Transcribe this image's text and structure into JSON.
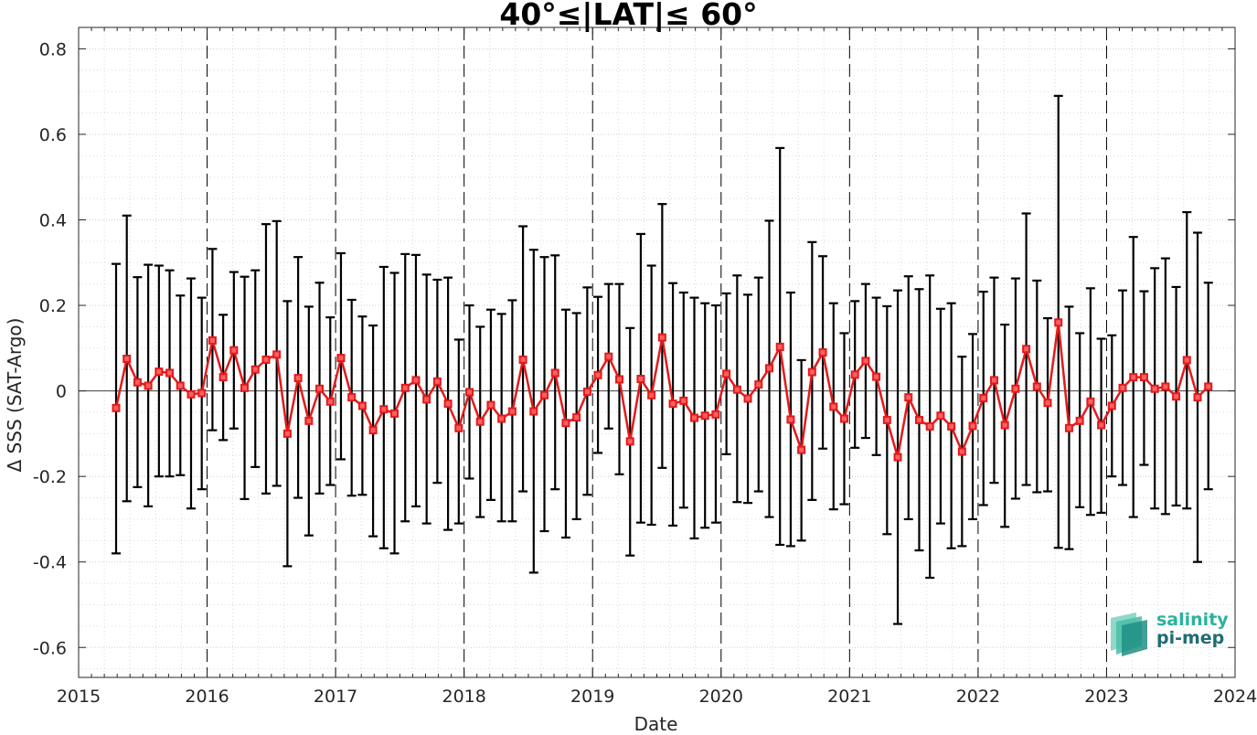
{
  "chart_data": {
    "type": "line",
    "title": "40°≤|LAT|≤ 60°",
    "xlabel": "Date",
    "ylabel": "Δ SSS (SAT-Argo)",
    "xlim": [
      2015,
      2024
    ],
    "ylim": [
      -0.67,
      0.85
    ],
    "xticks": [
      "2015",
      "2016",
      "2017",
      "2018",
      "2019",
      "2020",
      "2021",
      "2022",
      "2023",
      "2024"
    ],
    "yticks": [
      "-0.6",
      "-0.4",
      "-0.2",
      "0",
      "0.2",
      "0.4",
      "0.6",
      "0.8"
    ],
    "grid": true,
    "series": [
      {
        "color": "#e31a1c",
        "marker": "square",
        "error_bars": true,
        "x": [
          "2015-04",
          "2015-05",
          "2015-06",
          "2015-07",
          "2015-08",
          "2015-09",
          "2015-10",
          "2015-11",
          "2015-12",
          "2016-01",
          "2016-02",
          "2016-03",
          "2016-04",
          "2016-05",
          "2016-06",
          "2016-07",
          "2016-08",
          "2016-09",
          "2016-10",
          "2016-11",
          "2016-12",
          "2017-01",
          "2017-02",
          "2017-03",
          "2017-04",
          "2017-05",
          "2017-06",
          "2017-07",
          "2017-08",
          "2017-09",
          "2017-10",
          "2017-11",
          "2017-12",
          "2018-01",
          "2018-02",
          "2018-03",
          "2018-04",
          "2018-05",
          "2018-06",
          "2018-07",
          "2018-08",
          "2018-09",
          "2018-10",
          "2018-11",
          "2018-12",
          "2019-01",
          "2019-02",
          "2019-03",
          "2019-04",
          "2019-05",
          "2019-06",
          "2019-07",
          "2019-08",
          "2019-09",
          "2019-10",
          "2019-11",
          "2019-12",
          "2020-01",
          "2020-02",
          "2020-03",
          "2020-04",
          "2020-05",
          "2020-06",
          "2020-07",
          "2020-08",
          "2020-09",
          "2020-10",
          "2020-11",
          "2020-12",
          "2021-01",
          "2021-02",
          "2021-03",
          "2021-04",
          "2021-05",
          "2021-06",
          "2021-07",
          "2021-08",
          "2021-09",
          "2021-10",
          "2021-11",
          "2021-12",
          "2022-01",
          "2022-02",
          "2022-03",
          "2022-04",
          "2022-05",
          "2022-06",
          "2022-07",
          "2022-08",
          "2022-09",
          "2022-10",
          "2022-11",
          "2022-12",
          "2023-01",
          "2023-02",
          "2023-03",
          "2023-04",
          "2023-05",
          "2023-06",
          "2023-07",
          "2023-08",
          "2023-09",
          "2023-10"
        ],
        "y": [
          -0.04,
          0.075,
          0.02,
          0.012,
          0.045,
          0.042,
          0.012,
          -0.008,
          -0.005,
          0.118,
          0.032,
          0.095,
          0.007,
          0.05,
          0.073,
          0.085,
          -0.1,
          0.03,
          -0.07,
          0.005,
          -0.025,
          0.077,
          -0.015,
          -0.035,
          -0.092,
          -0.043,
          -0.053,
          0.007,
          0.025,
          -0.02,
          0.022,
          -0.03,
          -0.087,
          -0.003,
          -0.072,
          -0.033,
          -0.065,
          -0.048,
          0.073,
          -0.048,
          -0.01,
          0.042,
          -0.075,
          -0.062,
          -0.002,
          0.037,
          0.08,
          0.027,
          -0.118,
          0.028,
          -0.01,
          0.125,
          -0.03,
          -0.023,
          -0.063,
          -0.058,
          -0.055,
          0.04,
          0.003,
          -0.018,
          0.015,
          0.053,
          0.103,
          -0.067,
          -0.138,
          0.044,
          0.09,
          -0.037,
          -0.065,
          0.038,
          0.07,
          0.033,
          -0.068,
          -0.155,
          -0.015,
          -0.068,
          -0.083,
          -0.058,
          -0.083,
          -0.142,
          -0.082,
          -0.017,
          0.025,
          -0.08,
          0.005,
          0.098,
          0.01,
          -0.028,
          0.16,
          -0.087,
          -0.07,
          -0.025,
          -0.08,
          -0.035,
          0.007,
          0.032,
          0.032,
          0.005,
          0.01,
          -0.013,
          0.072,
          -0.015,
          0.01
        ],
        "upper": [
          0.297,
          0.41,
          0.266,
          0.295,
          0.293,
          0.282,
          0.223,
          0.263,
          0.218,
          0.332,
          0.178,
          0.278,
          0.267,
          0.282,
          0.39,
          0.397,
          0.21,
          0.313,
          0.197,
          0.253,
          0.172,
          0.322,
          0.213,
          0.174,
          0.153,
          0.29,
          0.276,
          0.32,
          0.318,
          0.272,
          0.26,
          0.265,
          0.12,
          0.2,
          0.15,
          0.19,
          0.18,
          0.212,
          0.385,
          0.33,
          0.313,
          0.317,
          0.19,
          0.182,
          0.242,
          0.22,
          0.25,
          0.25,
          0.147,
          0.367,
          0.293,
          0.437,
          0.252,
          0.23,
          0.218,
          0.205,
          0.2,
          0.228,
          0.27,
          0.225,
          0.265,
          0.398,
          0.568,
          0.23,
          0.072,
          0.348,
          0.315,
          0.205,
          0.135,
          0.21,
          0.25,
          0.218,
          0.198,
          0.235,
          0.268,
          0.238,
          0.27,
          0.192,
          0.205,
          0.08,
          0.133,
          0.232,
          0.265,
          0.155,
          0.263,
          0.415,
          0.258,
          0.17,
          0.69,
          0.197,
          0.135,
          0.24,
          0.122,
          0.13,
          0.235,
          0.36,
          0.233,
          0.287,
          0.31,
          0.243,
          0.418,
          0.37,
          0.253
        ],
        "lower": [
          -0.38,
          -0.258,
          -0.225,
          -0.27,
          -0.2,
          -0.2,
          -0.197,
          -0.275,
          -0.23,
          -0.092,
          -0.115,
          -0.088,
          -0.253,
          -0.178,
          -0.24,
          -0.222,
          -0.41,
          -0.25,
          -0.338,
          -0.24,
          -0.22,
          -0.16,
          -0.245,
          -0.243,
          -0.34,
          -0.368,
          -0.38,
          -0.305,
          -0.27,
          -0.31,
          -0.215,
          -0.325,
          -0.31,
          -0.205,
          -0.295,
          -0.255,
          -0.305,
          -0.305,
          -0.235,
          -0.425,
          -0.328,
          -0.23,
          -0.343,
          -0.3,
          -0.243,
          -0.145,
          -0.088,
          -0.195,
          -0.385,
          -0.308,
          -0.313,
          -0.18,
          -0.315,
          -0.273,
          -0.345,
          -0.32,
          -0.308,
          -0.148,
          -0.26,
          -0.262,
          -0.235,
          -0.295,
          -0.36,
          -0.363,
          -0.35,
          -0.255,
          -0.135,
          -0.277,
          -0.265,
          -0.133,
          -0.11,
          -0.15,
          -0.335,
          -0.545,
          -0.3,
          -0.373,
          -0.437,
          -0.31,
          -0.368,
          -0.363,
          -0.3,
          -0.267,
          -0.215,
          -0.318,
          -0.252,
          -0.22,
          -0.237,
          -0.235,
          -0.367,
          -0.37,
          -0.272,
          -0.29,
          -0.285,
          -0.2,
          -0.22,
          -0.295,
          -0.173,
          -0.275,
          -0.288,
          -0.268,
          -0.275,
          -0.4,
          -0.23
        ]
      }
    ]
  },
  "logo": {
    "line1": "salinity",
    "line2": "pi-mep"
  }
}
